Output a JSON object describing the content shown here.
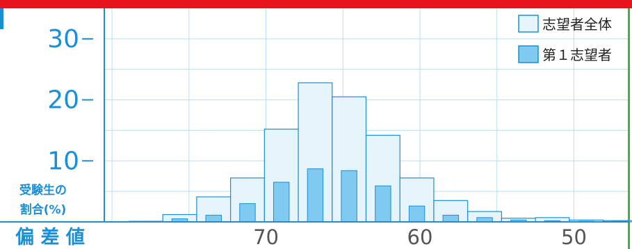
{
  "colors": {
    "top_bar": "#e8141d",
    "left_accent": "#1a8fd6",
    "right_border": "#3bb54a",
    "axis": "#1a8fd6",
    "grid": "#b9dff3",
    "all_fill": "#e6f4fc",
    "all_stroke": "#1a8fd6",
    "first_fill": "#7fcaf0",
    "first_stroke": "#1a8fd6",
    "text": "#1a8fd6",
    "tick_text": "#555555"
  },
  "chart_data": {
    "type": "bar",
    "xlabel": "偏 差 値",
    "ylabel_lines": [
      "受験生の",
      "割合(%)"
    ],
    "x_reversed": true,
    "xlim": [
      80.5,
      46.5
    ],
    "ylim": [
      0,
      35
    ],
    "y_ticks": [
      10,
      20,
      30
    ],
    "x_ticks": [
      70,
      60,
      50
    ],
    "grid": true,
    "legend_position": "top-right",
    "bin_width": 2.2,
    "bin_centers": [
      77.8,
      75.6,
      73.4,
      71.2,
      69.0,
      66.8,
      64.6,
      62.4,
      60.2,
      58.0,
      55.8,
      53.6,
      51.4,
      49.2,
      47.0
    ],
    "series": [
      {
        "name": "志望者全体",
        "values": [
          0.1,
          1.2,
          4.1,
          7.2,
          15.2,
          22.8,
          20.5,
          14.2,
          7.2,
          3.5,
          1.7,
          0.6,
          0.7,
          0.3,
          0.2
        ]
      },
      {
        "name": "第１志望者",
        "values": [
          0.05,
          0.5,
          1.1,
          3.0,
          6.5,
          8.7,
          8.4,
          5.9,
          2.6,
          1.1,
          0.7,
          0.3,
          0.2,
          0.1,
          0.1
        ]
      }
    ]
  }
}
